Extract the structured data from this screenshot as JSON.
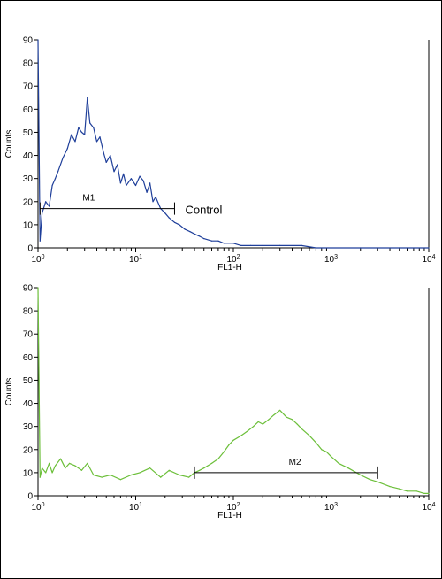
{
  "chart_data": [
    {
      "type": "line",
      "title": "",
      "xlabel": "FL1-H",
      "ylabel": "Counts",
      "xscale": "log",
      "xlim": [
        1,
        10000
      ],
      "ylim": [
        0,
        90
      ],
      "yticks": [
        "0",
        "10",
        "20",
        "30",
        "40",
        "50",
        "60",
        "70",
        "80",
        "90"
      ],
      "xticks": [
        {
          "base": "10",
          "exp": "0"
        },
        {
          "base": "10",
          "exp": "1"
        },
        {
          "base": "10",
          "exp": "2"
        },
        {
          "base": "10",
          "exp": "3"
        },
        {
          "base": "10",
          "exp": "4"
        }
      ],
      "series": [
        {
          "color": "#1f3f9a",
          "x": [
            1.0,
            1.05,
            1.1,
            1.2,
            1.3,
            1.4,
            1.5,
            1.6,
            1.8,
            2.0,
            2.2,
            2.4,
            2.6,
            2.8,
            3.0,
            3.2,
            3.4,
            3.7,
            4.0,
            4.3,
            4.7,
            5.0,
            5.5,
            6.0,
            6.5,
            7.0,
            7.5,
            8.0,
            9.0,
            10,
            11,
            12,
            13,
            14,
            15,
            16,
            18,
            20,
            22,
            25,
            28,
            32,
            36,
            40,
            45,
            50,
            60,
            70,
            80,
            100,
            120,
            150,
            200,
            300,
            500,
            700,
            1000,
            2000,
            5000,
            10000
          ],
          "values": [
            90,
            3,
            15,
            20,
            18,
            27,
            30,
            33,
            39,
            43,
            49,
            46,
            52,
            50,
            49,
            65,
            54,
            52,
            46,
            48,
            41,
            37,
            40,
            33,
            36,
            28,
            32,
            27,
            30,
            27,
            31,
            29,
            24,
            28,
            20,
            22,
            17,
            15,
            13,
            11,
            10,
            8,
            7,
            6,
            5,
            4,
            3,
            3,
            2,
            2,
            1,
            1,
            1,
            1,
            1,
            0,
            0,
            0,
            0,
            0
          ]
        }
      ],
      "marker": {
        "label": "M1",
        "from": 1.05,
        "to": 25,
        "level": 17
      },
      "annotation": "Control"
    },
    {
      "type": "line",
      "title": "",
      "xlabel": "FL1-H",
      "ylabel": "Counts",
      "xscale": "log",
      "xlim": [
        1,
        10000
      ],
      "ylim": [
        0,
        90
      ],
      "yticks": [
        "0",
        "10",
        "20",
        "30",
        "40",
        "50",
        "60",
        "70",
        "80",
        "90"
      ],
      "xticks": [
        {
          "base": "10",
          "exp": "0"
        },
        {
          "base": "10",
          "exp": "1"
        },
        {
          "base": "10",
          "exp": "2"
        },
        {
          "base": "10",
          "exp": "3"
        },
        {
          "base": "10",
          "exp": "4"
        }
      ],
      "series": [
        {
          "color": "#6cbf3a",
          "x": [
            1.0,
            1.05,
            1.1,
            1.2,
            1.3,
            1.4,
            1.5,
            1.7,
            1.9,
            2.1,
            2.4,
            2.8,
            3.2,
            3.7,
            4.5,
            5.5,
            7,
            9,
            11,
            14,
            18,
            22,
            28,
            35,
            40,
            45,
            50,
            60,
            70,
            80,
            90,
            100,
            120,
            140,
            160,
            180,
            200,
            230,
            260,
            300,
            350,
            400,
            450,
            500,
            600,
            700,
            800,
            900,
            1000,
            1200,
            1500,
            2000,
            2500,
            3000,
            4000,
            5000,
            6000,
            7500,
            9000,
            10000
          ],
          "values": [
            90,
            8,
            12,
            10,
            14,
            10,
            13,
            16,
            12,
            14,
            13,
            11,
            14,
            9,
            8,
            9,
            7,
            9,
            10,
            12,
            8,
            11,
            9,
            8,
            10,
            11,
            12,
            14,
            16,
            19,
            22,
            24,
            26,
            28,
            30,
            32,
            31,
            33,
            35,
            37,
            34,
            33,
            31,
            29,
            26,
            23,
            20,
            19,
            17,
            14,
            12,
            9,
            7,
            6,
            4,
            3,
            2,
            2,
            1,
            1
          ]
        }
      ],
      "marker": {
        "label": "M2",
        "from": 40,
        "to": 3000,
        "level": 10
      },
      "annotation": ""
    }
  ]
}
